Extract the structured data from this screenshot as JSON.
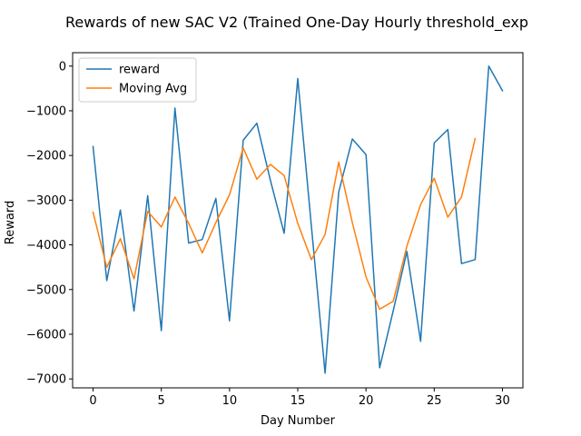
{
  "chart_data": {
    "type": "line",
    "title": "Rewards of new SAC V2 (Trained One-Day Hourly threshold_exp",
    "xlabel": "Day Number",
    "ylabel": "Reward",
    "xlim": [
      -1.5,
      31.5
    ],
    "ylim": [
      -7200,
      300
    ],
    "xticks": [
      0,
      5,
      10,
      15,
      20,
      25,
      30
    ],
    "xtick_labels": [
      "0",
      "5",
      "10",
      "15",
      "20",
      "25",
      "30"
    ],
    "yticks": [
      0,
      -1000,
      -2000,
      -3000,
      -4000,
      -5000,
      -6000,
      -7000
    ],
    "ytick_labels": [
      "0",
      "−1000",
      "−2000",
      "−3000",
      "−4000",
      "−5000",
      "−6000",
      "−7000"
    ],
    "grid": false,
    "legend": "top-left",
    "series": [
      {
        "name": "reward",
        "color": "#1f77b4",
        "x": [
          0,
          1,
          2,
          3,
          4,
          5,
          6,
          7,
          8,
          9,
          10,
          11,
          12,
          13,
          14,
          15,
          16,
          17,
          18,
          19,
          20,
          21,
          22,
          23,
          24,
          25,
          26,
          27,
          28,
          29,
          30
        ],
        "y": [
          -1800,
          -4800,
          -3220,
          -5480,
          -2900,
          -5920,
          -940,
          -3960,
          -3880,
          -2960,
          -5700,
          -1660,
          -1280,
          -2560,
          -3740,
          -280,
          -3580,
          -6870,
          -2820,
          -1630,
          -1980,
          -6750,
          -5470,
          -4150,
          -6160,
          -1720,
          -1420,
          -4420,
          -4330,
          0,
          -550
        ]
      },
      {
        "name": "Moving Avg",
        "color": "#ff7f0e",
        "x": [
          0,
          1,
          2,
          3,
          4,
          5,
          6,
          7,
          8,
          9,
          10,
          11,
          12,
          13,
          14,
          15,
          16,
          17,
          18,
          19,
          20,
          21,
          22,
          23,
          24,
          25,
          26,
          27,
          28
        ],
        "y": [
          -3270,
          -4500,
          -3860,
          -4760,
          -3250,
          -3600,
          -2930,
          -3520,
          -4180,
          -3500,
          -2880,
          -1830,
          -2530,
          -2200,
          -2450,
          -3520,
          -4330,
          -3770,
          -2150,
          -3500,
          -4720,
          -5440,
          -5260,
          -4030,
          -3100,
          -2510,
          -3380,
          -2930,
          -1620
        ]
      }
    ]
  }
}
